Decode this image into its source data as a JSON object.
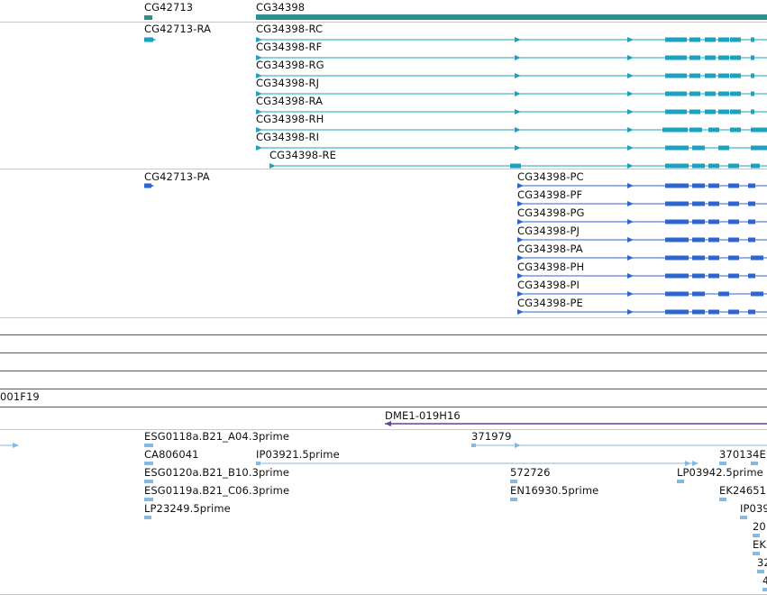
{
  "colors": {
    "gene": "#2f8f8f",
    "transcript": "#1aa3bf",
    "protein": "#2f65d0",
    "clone": "#6a3fa0",
    "est": "#86b9df",
    "separator": "#c8c8c8"
  },
  "genes": [
    {
      "label": "CG42713"
    },
    {
      "label": "CG34398"
    }
  ],
  "transcripts": [
    {
      "label": "CG42713-RA"
    },
    {
      "label": "CG34398-RC"
    },
    {
      "label": "CG34398-RF"
    },
    {
      "label": "CG34398-RG"
    },
    {
      "label": "CG34398-RJ"
    },
    {
      "label": "CG34398-RA"
    },
    {
      "label": "CG34398-RH"
    },
    {
      "label": "CG34398-RI"
    },
    {
      "label": "CG34398-RE"
    }
  ],
  "proteins": [
    {
      "label": "CG42713-PA"
    },
    {
      "label": "CG34398-PC"
    },
    {
      "label": "CG34398-PF"
    },
    {
      "label": "CG34398-PG"
    },
    {
      "label": "CG34398-PJ"
    },
    {
      "label": "CG34398-PA"
    },
    {
      "label": "CG34398-PH"
    },
    {
      "label": "CG34398-PI"
    },
    {
      "label": "CG34398-PE"
    }
  ],
  "clones": [
    {
      "label": "001F19"
    },
    {
      "label": "DME1-019H16"
    }
  ],
  "ests": [
    {
      "label": "ESG0118a.B21_A04.3prime"
    },
    {
      "label": "371979"
    },
    {
      "label": "CA806041"
    },
    {
      "label": "IP03921.5prime"
    },
    {
      "label": "370134E"
    },
    {
      "label": "ESG0120a.B21_B10.3prime"
    },
    {
      "label": "572726"
    },
    {
      "label": "LP03942.5prime"
    },
    {
      "label": "ESG0119a.B21_C06.3prime"
    },
    {
      "label": "EN16930.5prime"
    },
    {
      "label": "EK24651"
    },
    {
      "label": "LP23249.5prime"
    },
    {
      "label": "IP039"
    },
    {
      "label": "20"
    },
    {
      "label": "EK"
    },
    {
      "label": "32"
    },
    {
      "label": "4"
    }
  ]
}
